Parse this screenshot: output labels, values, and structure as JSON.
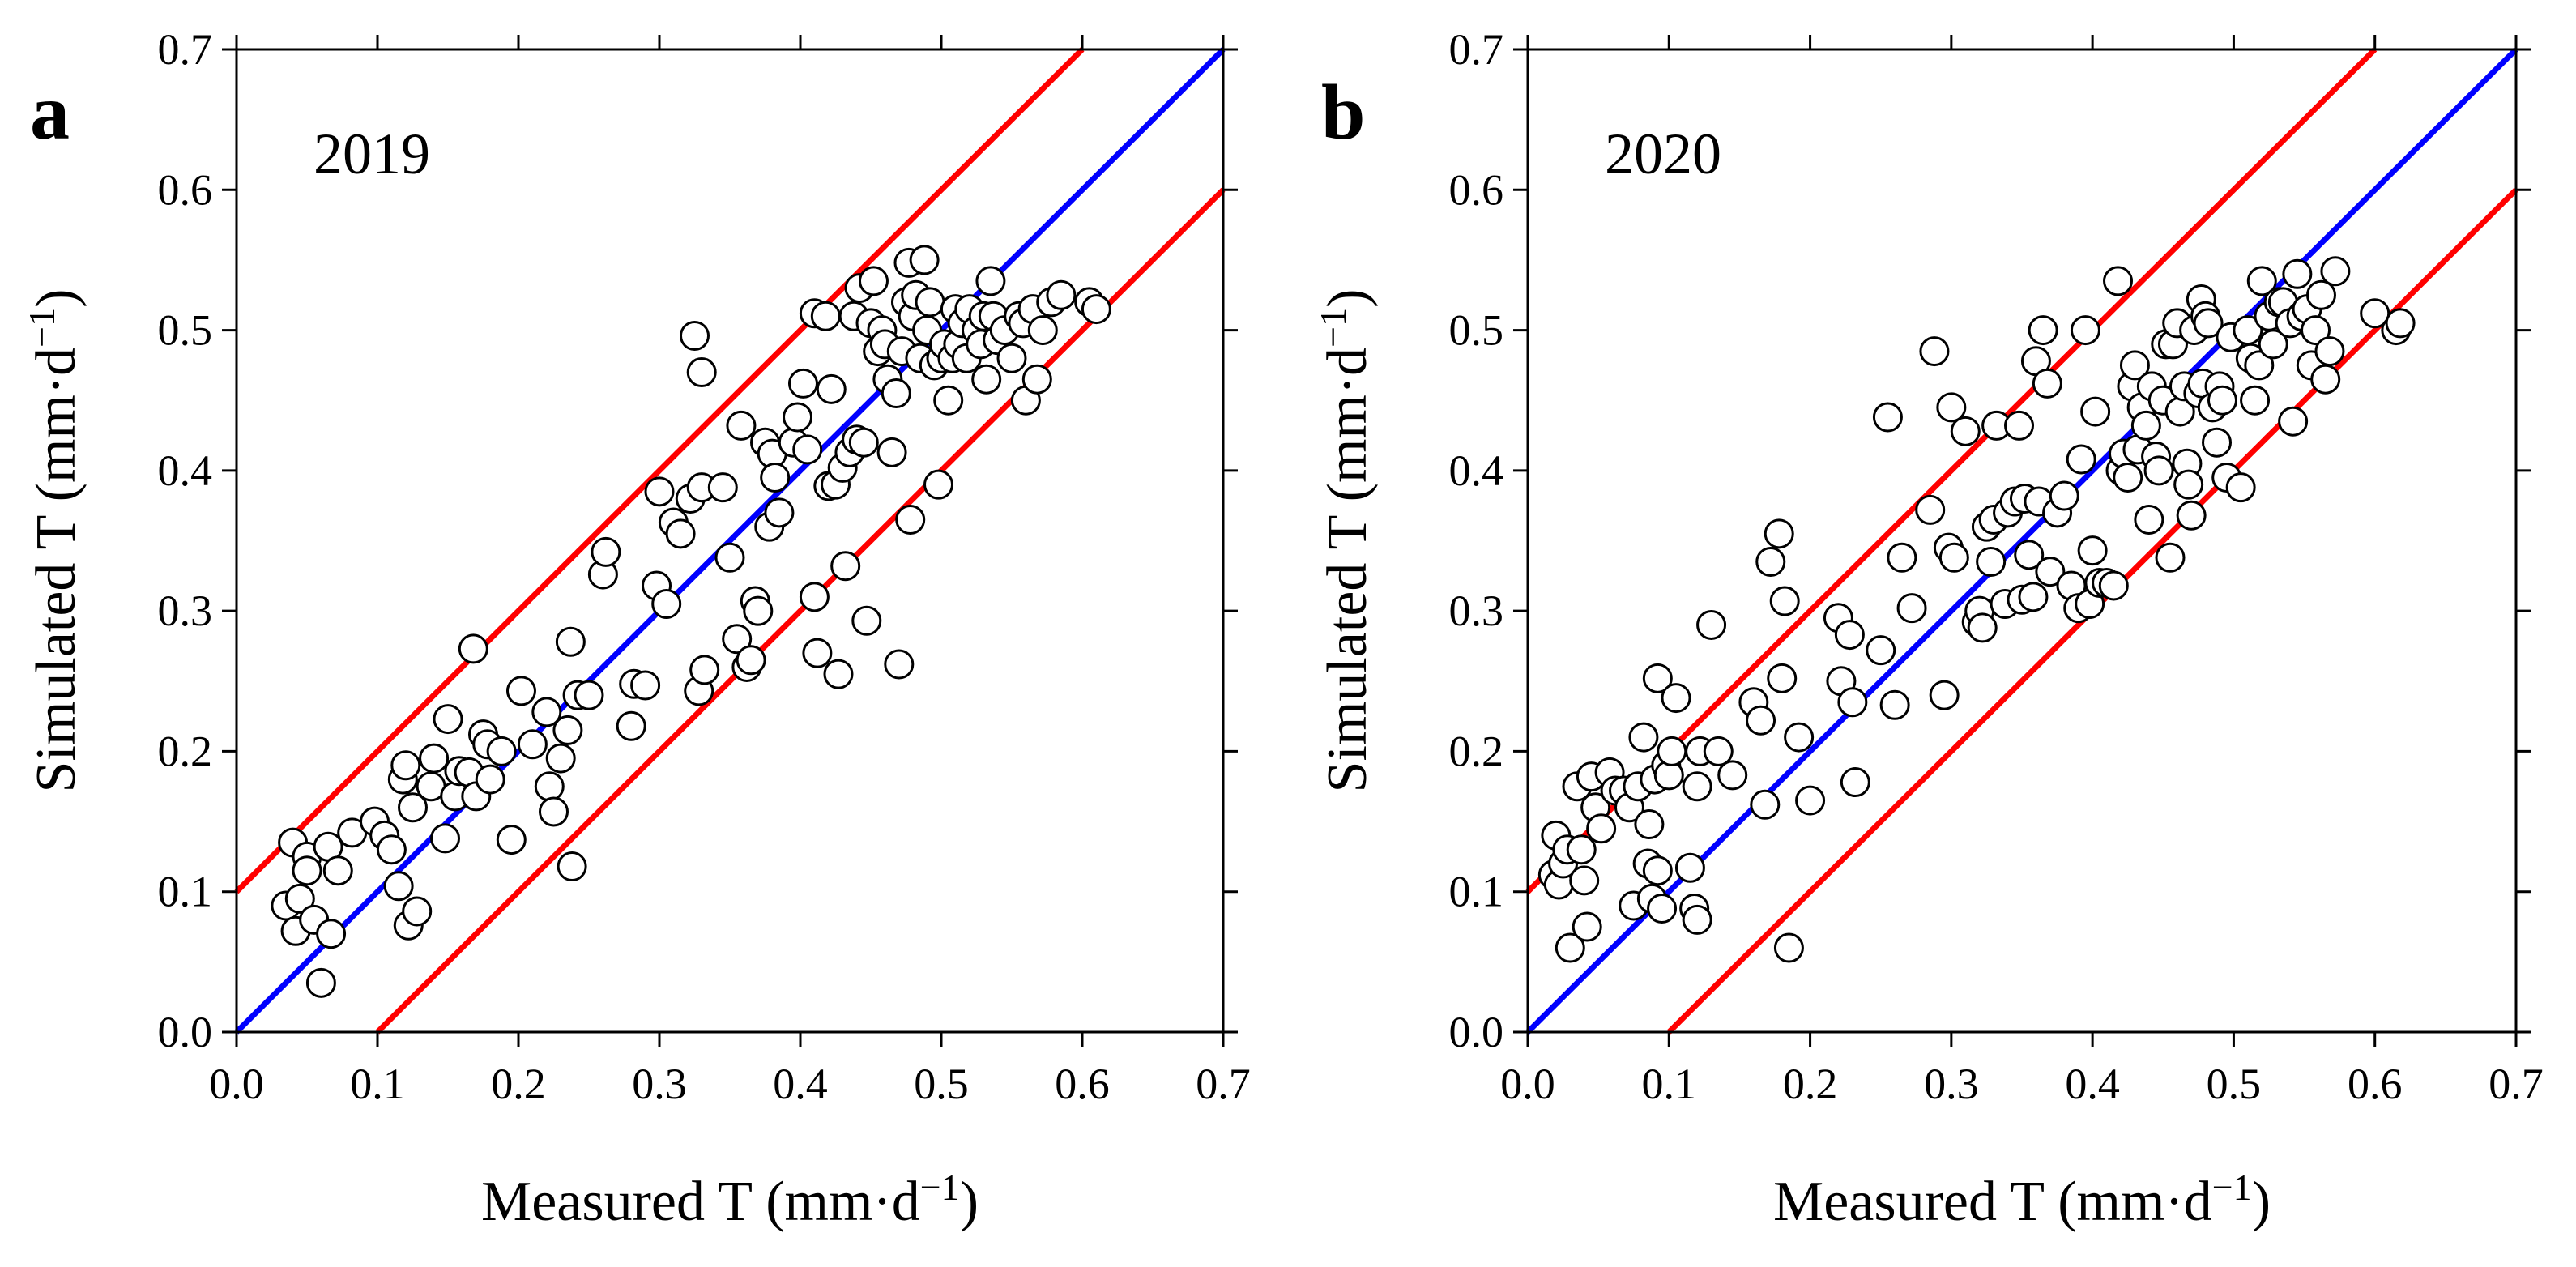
{
  "chart_data": [
    {
      "type": "scatter",
      "panel": "a",
      "year": "2019",
      "xlabel": "Measured T (mm·d",
      "ylabel": "Simulated T (mm·d",
      "unit_exponent": "−1",
      "xlim": [
        0,
        0.7
      ],
      "ylim": [
        0,
        0.7
      ],
      "ticks": [
        "0.0",
        "0.1",
        "0.2",
        "0.3",
        "0.4",
        "0.5",
        "0.6",
        "0.7"
      ],
      "lines": [
        {
          "name": "1:1 line",
          "color": "#0000ff",
          "x": [
            0,
            0.7
          ],
          "y": [
            0,
            0.7
          ]
        },
        {
          "name": "+0.1 bound",
          "color": "#ff0000",
          "x": [
            0,
            0.6
          ],
          "y": [
            0.1,
            0.7
          ]
        },
        {
          "name": "-0.1 bound",
          "color": "#ff0000",
          "x": [
            0.1,
            0.7
          ],
          "y": [
            0,
            0.6
          ]
        }
      ],
      "points": [
        [
          0.035,
          0.09
        ],
        [
          0.04,
          0.135
        ],
        [
          0.042,
          0.072
        ],
        [
          0.045,
          0.095
        ],
        [
          0.05,
          0.125
        ],
        [
          0.05,
          0.115
        ],
        [
          0.055,
          0.08
        ],
        [
          0.06,
          0.035
        ],
        [
          0.065,
          0.132
        ],
        [
          0.067,
          0.07
        ],
        [
          0.072,
          0.115
        ],
        [
          0.082,
          0.142
        ],
        [
          0.098,
          0.15
        ],
        [
          0.105,
          0.14
        ],
        [
          0.11,
          0.13
        ],
        [
          0.115,
          0.104
        ],
        [
          0.118,
          0.18
        ],
        [
          0.12,
          0.19
        ],
        [
          0.122,
          0.076
        ],
        [
          0.125,
          0.16
        ],
        [
          0.128,
          0.086
        ],
        [
          0.138,
          0.175
        ],
        [
          0.14,
          0.195
        ],
        [
          0.148,
          0.138
        ],
        [
          0.15,
          0.223
        ],
        [
          0.155,
          0.168
        ],
        [
          0.158,
          0.186
        ],
        [
          0.165,
          0.185
        ],
        [
          0.168,
          0.273
        ],
        [
          0.17,
          0.168
        ],
        [
          0.175,
          0.212
        ],
        [
          0.178,
          0.205
        ],
        [
          0.18,
          0.18
        ],
        [
          0.188,
          0.2
        ],
        [
          0.195,
          0.137
        ],
        [
          0.202,
          0.243
        ],
        [
          0.21,
          0.205
        ],
        [
          0.22,
          0.228
        ],
        [
          0.222,
          0.175
        ],
        [
          0.225,
          0.157
        ],
        [
          0.23,
          0.195
        ],
        [
          0.235,
          0.215
        ],
        [
          0.237,
          0.278
        ],
        [
          0.238,
          0.118
        ],
        [
          0.242,
          0.24
        ],
        [
          0.25,
          0.24
        ],
        [
          0.26,
          0.326
        ],
        [
          0.262,
          0.342
        ],
        [
          0.28,
          0.218
        ],
        [
          0.282,
          0.248
        ],
        [
          0.29,
          0.247
        ],
        [
          0.298,
          0.318
        ],
        [
          0.3,
          0.385
        ],
        [
          0.305,
          0.305
        ],
        [
          0.31,
          0.363
        ],
        [
          0.315,
          0.355
        ],
        [
          0.322,
          0.38
        ],
        [
          0.325,
          0.496
        ],
        [
          0.328,
          0.243
        ],
        [
          0.33,
          0.47
        ],
        [
          0.33,
          0.388
        ],
        [
          0.332,
          0.258
        ],
        [
          0.345,
          0.388
        ],
        [
          0.35,
          0.338
        ],
        [
          0.355,
          0.28
        ],
        [
          0.358,
          0.432
        ],
        [
          0.362,
          0.26
        ],
        [
          0.365,
          0.265
        ],
        [
          0.368,
          0.307
        ],
        [
          0.37,
          0.3
        ],
        [
          0.375,
          0.42
        ],
        [
          0.378,
          0.36
        ],
        [
          0.38,
          0.412
        ],
        [
          0.382,
          0.395
        ],
        [
          0.385,
          0.37
        ],
        [
          0.395,
          0.42
        ],
        [
          0.398,
          0.438
        ],
        [
          0.402,
          0.462
        ],
        [
          0.405,
          0.415
        ],
        [
          0.41,
          0.512
        ],
        [
          0.41,
          0.31
        ],
        [
          0.412,
          0.27
        ],
        [
          0.418,
          0.51
        ],
        [
          0.42,
          0.389
        ],
        [
          0.422,
          0.458
        ],
        [
          0.425,
          0.39
        ],
        [
          0.427,
          0.255
        ],
        [
          0.43,
          0.402
        ],
        [
          0.432,
          0.332
        ],
        [
          0.435,
          0.413
        ],
        [
          0.438,
          0.51
        ],
        [
          0.44,
          0.422
        ],
        [
          0.442,
          0.53
        ],
        [
          0.445,
          0.42
        ],
        [
          0.447,
          0.293
        ],
        [
          0.45,
          0.505
        ],
        [
          0.452,
          0.535
        ],
        [
          0.455,
          0.485
        ],
        [
          0.458,
          0.5
        ],
        [
          0.46,
          0.49
        ],
        [
          0.462,
          0.465
        ],
        [
          0.465,
          0.413
        ],
        [
          0.468,
          0.455
        ],
        [
          0.47,
          0.262
        ],
        [
          0.472,
          0.485
        ],
        [
          0.475,
          0.52
        ],
        [
          0.477,
          0.548
        ],
        [
          0.478,
          0.365
        ],
        [
          0.48,
          0.51
        ],
        [
          0.482,
          0.525
        ],
        [
          0.485,
          0.48
        ],
        [
          0.488,
          0.55
        ],
        [
          0.49,
          0.5
        ],
        [
          0.492,
          0.52
        ],
        [
          0.495,
          0.475
        ],
        [
          0.498,
          0.39
        ],
        [
          0.5,
          0.48
        ],
        [
          0.502,
          0.49
        ],
        [
          0.505,
          0.45
        ],
        [
          0.508,
          0.48
        ],
        [
          0.51,
          0.515
        ],
        [
          0.512,
          0.49
        ],
        [
          0.515,
          0.505
        ],
        [
          0.518,
          0.48
        ],
        [
          0.52,
          0.515
        ],
        [
          0.525,
          0.5
        ],
        [
          0.528,
          0.49
        ],
        [
          0.53,
          0.51
        ],
        [
          0.532,
          0.465
        ],
        [
          0.535,
          0.535
        ],
        [
          0.537,
          0.51
        ],
        [
          0.54,
          0.493
        ],
        [
          0.545,
          0.5
        ],
        [
          0.55,
          0.48
        ],
        [
          0.555,
          0.51
        ],
        [
          0.558,
          0.505
        ],
        [
          0.56,
          0.45
        ],
        [
          0.565,
          0.515
        ],
        [
          0.568,
          0.465
        ],
        [
          0.572,
          0.5
        ],
        [
          0.578,
          0.52
        ],
        [
          0.585,
          0.525
        ],
        [
          0.605,
          0.52
        ],
        [
          0.61,
          0.515
        ]
      ]
    },
    {
      "type": "scatter",
      "panel": "b",
      "year": "2020",
      "xlabel": "Measured T (mm·d",
      "ylabel": "Simulated T (mm·d",
      "unit_exponent": "−1",
      "xlim": [
        0,
        0.7
      ],
      "ylim": [
        0,
        0.7
      ],
      "ticks": [
        "0.0",
        "0.1",
        "0.2",
        "0.3",
        "0.4",
        "0.5",
        "0.6",
        "0.7"
      ],
      "lines": [
        {
          "name": "1:1 line",
          "color": "#0000ff",
          "x": [
            0,
            0.7
          ],
          "y": [
            0,
            0.7
          ]
        },
        {
          "name": "+0.1 bound",
          "color": "#ff0000",
          "x": [
            0,
            0.6
          ],
          "y": [
            0.1,
            0.7
          ]
        },
        {
          "name": "-0.1 bound",
          "color": "#ff0000",
          "x": [
            0.1,
            0.7
          ],
          "y": [
            0,
            0.6
          ]
        }
      ],
      "points": [
        [
          0.018,
          0.112
        ],
        [
          0.02,
          0.14
        ],
        [
          0.022,
          0.105
        ],
        [
          0.025,
          0.12
        ],
        [
          0.028,
          0.13
        ],
        [
          0.03,
          0.06
        ],
        [
          0.035,
          0.175
        ],
        [
          0.038,
          0.13
        ],
        [
          0.04,
          0.108
        ],
        [
          0.042,
          0.075
        ],
        [
          0.045,
          0.182
        ],
        [
          0.048,
          0.16
        ],
        [
          0.052,
          0.145
        ],
        [
          0.058,
          0.185
        ],
        [
          0.062,
          0.172
        ],
        [
          0.068,
          0.172
        ],
        [
          0.072,
          0.16
        ],
        [
          0.075,
          0.09
        ],
        [
          0.078,
          0.175
        ],
        [
          0.082,
          0.21
        ],
        [
          0.085,
          0.12
        ],
        [
          0.086,
          0.148
        ],
        [
          0.088,
          0.095
        ],
        [
          0.09,
          0.18
        ],
        [
          0.092,
          0.252
        ],
        [
          0.092,
          0.115
        ],
        [
          0.095,
          0.088
        ],
        [
          0.098,
          0.19
        ],
        [
          0.1,
          0.183
        ],
        [
          0.102,
          0.2
        ],
        [
          0.105,
          0.238
        ],
        [
          0.115,
          0.117
        ],
        [
          0.118,
          0.088
        ],
        [
          0.12,
          0.08
        ],
        [
          0.12,
          0.175
        ],
        [
          0.122,
          0.2
        ],
        [
          0.13,
          0.29
        ],
        [
          0.135,
          0.2
        ],
        [
          0.145,
          0.183
        ],
        [
          0.16,
          0.235
        ],
        [
          0.165,
          0.222
        ],
        [
          0.168,
          0.162
        ],
        [
          0.172,
          0.335
        ],
        [
          0.178,
          0.355
        ],
        [
          0.18,
          0.252
        ],
        [
          0.182,
          0.307
        ],
        [
          0.185,
          0.06
        ],
        [
          0.192,
          0.21
        ],
        [
          0.2,
          0.165
        ],
        [
          0.22,
          0.295
        ],
        [
          0.222,
          0.25
        ],
        [
          0.228,
          0.283
        ],
        [
          0.23,
          0.235
        ],
        [
          0.232,
          0.178
        ],
        [
          0.25,
          0.272
        ],
        [
          0.255,
          0.438
        ],
        [
          0.26,
          0.233
        ],
        [
          0.265,
          0.338
        ],
        [
          0.272,
          0.302
        ],
        [
          0.285,
          0.372
        ],
        [
          0.288,
          0.485
        ],
        [
          0.295,
          0.24
        ],
        [
          0.298,
          0.345
        ],
        [
          0.3,
          0.445
        ],
        [
          0.302,
          0.338
        ],
        [
          0.31,
          0.428
        ],
        [
          0.318,
          0.292
        ],
        [
          0.32,
          0.3
        ],
        [
          0.322,
          0.288
        ],
        [
          0.325,
          0.36
        ],
        [
          0.328,
          0.335
        ],
        [
          0.33,
          0.365
        ],
        [
          0.332,
          0.432
        ],
        [
          0.338,
          0.305
        ],
        [
          0.34,
          0.37
        ],
        [
          0.345,
          0.378
        ],
        [
          0.348,
          0.432
        ],
        [
          0.35,
          0.308
        ],
        [
          0.352,
          0.38
        ],
        [
          0.355,
          0.34
        ],
        [
          0.358,
          0.31
        ],
        [
          0.36,
          0.478
        ],
        [
          0.362,
          0.378
        ],
        [
          0.365,
          0.5
        ],
        [
          0.368,
          0.462
        ],
        [
          0.37,
          0.328
        ],
        [
          0.375,
          0.37
        ],
        [
          0.38,
          0.382
        ],
        [
          0.385,
          0.318
        ],
        [
          0.39,
          0.302
        ],
        [
          0.392,
          0.408
        ],
        [
          0.395,
          0.5
        ],
        [
          0.398,
          0.305
        ],
        [
          0.4,
          0.343
        ],
        [
          0.402,
          0.442
        ],
        [
          0.405,
          0.32
        ],
        [
          0.41,
          0.32
        ],
        [
          0.415,
          0.318
        ],
        [
          0.418,
          0.535
        ],
        [
          0.42,
          0.4
        ],
        [
          0.422,
          0.412
        ],
        [
          0.425,
          0.395
        ],
        [
          0.428,
          0.46
        ],
        [
          0.43,
          0.475
        ],
        [
          0.432,
          0.415
        ],
        [
          0.435,
          0.445
        ],
        [
          0.438,
          0.432
        ],
        [
          0.44,
          0.365
        ],
        [
          0.442,
          0.46
        ],
        [
          0.445,
          0.41
        ],
        [
          0.447,
          0.4
        ],
        [
          0.45,
          0.45
        ],
        [
          0.452,
          0.49
        ],
        [
          0.455,
          0.338
        ],
        [
          0.457,
          0.49
        ],
        [
          0.46,
          0.505
        ],
        [
          0.462,
          0.442
        ],
        [
          0.465,
          0.46
        ],
        [
          0.467,
          0.405
        ],
        [
          0.468,
          0.39
        ],
        [
          0.47,
          0.368
        ],
        [
          0.472,
          0.5
        ],
        [
          0.475,
          0.455
        ],
        [
          0.477,
          0.522
        ],
        [
          0.478,
          0.462
        ],
        [
          0.48,
          0.51
        ],
        [
          0.482,
          0.505
        ],
        [
          0.485,
          0.445
        ],
        [
          0.488,
          0.42
        ],
        [
          0.49,
          0.46
        ],
        [
          0.492,
          0.45
        ],
        [
          0.495,
          0.395
        ],
        [
          0.498,
          0.495
        ],
        [
          0.505,
          0.388
        ],
        [
          0.51,
          0.5
        ],
        [
          0.512,
          0.48
        ],
        [
          0.515,
          0.45
        ],
        [
          0.518,
          0.475
        ],
        [
          0.52,
          0.535
        ],
        [
          0.525,
          0.51
        ],
        [
          0.528,
          0.49
        ],
        [
          0.532,
          0.52
        ],
        [
          0.535,
          0.52
        ],
        [
          0.54,
          0.505
        ],
        [
          0.542,
          0.435
        ],
        [
          0.545,
          0.54
        ],
        [
          0.548,
          0.51
        ],
        [
          0.552,
          0.515
        ],
        [
          0.555,
          0.475
        ],
        [
          0.558,
          0.5
        ],
        [
          0.562,
          0.525
        ],
        [
          0.565,
          0.465
        ],
        [
          0.568,
          0.485
        ],
        [
          0.572,
          0.542
        ],
        [
          0.6,
          0.512
        ],
        [
          0.615,
          0.5
        ],
        [
          0.618,
          0.505
        ]
      ]
    }
  ]
}
